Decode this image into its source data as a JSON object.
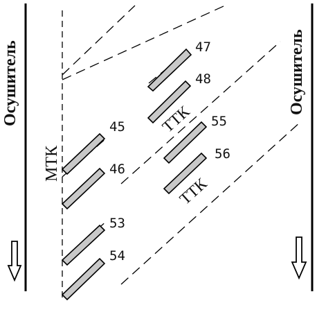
{
  "left_wall": {
    "label": "Осушитель",
    "arrow": "down-arrow"
  },
  "right_wall": {
    "label": "Осушитель",
    "arrow": "down-arrow"
  },
  "mtk_label": "МТК",
  "ttk_labels": [
    "ТТК",
    "ТТК"
  ],
  "tube_labels": {
    "t47": "47",
    "t48": "48",
    "t45": "45",
    "t46": "46",
    "t55": "55",
    "t56": "56",
    "t53": "53",
    "t54": "54"
  },
  "colors": {
    "tube_fill": "#c8c8c8",
    "stroke": "#000000",
    "background": "#ffffff"
  }
}
